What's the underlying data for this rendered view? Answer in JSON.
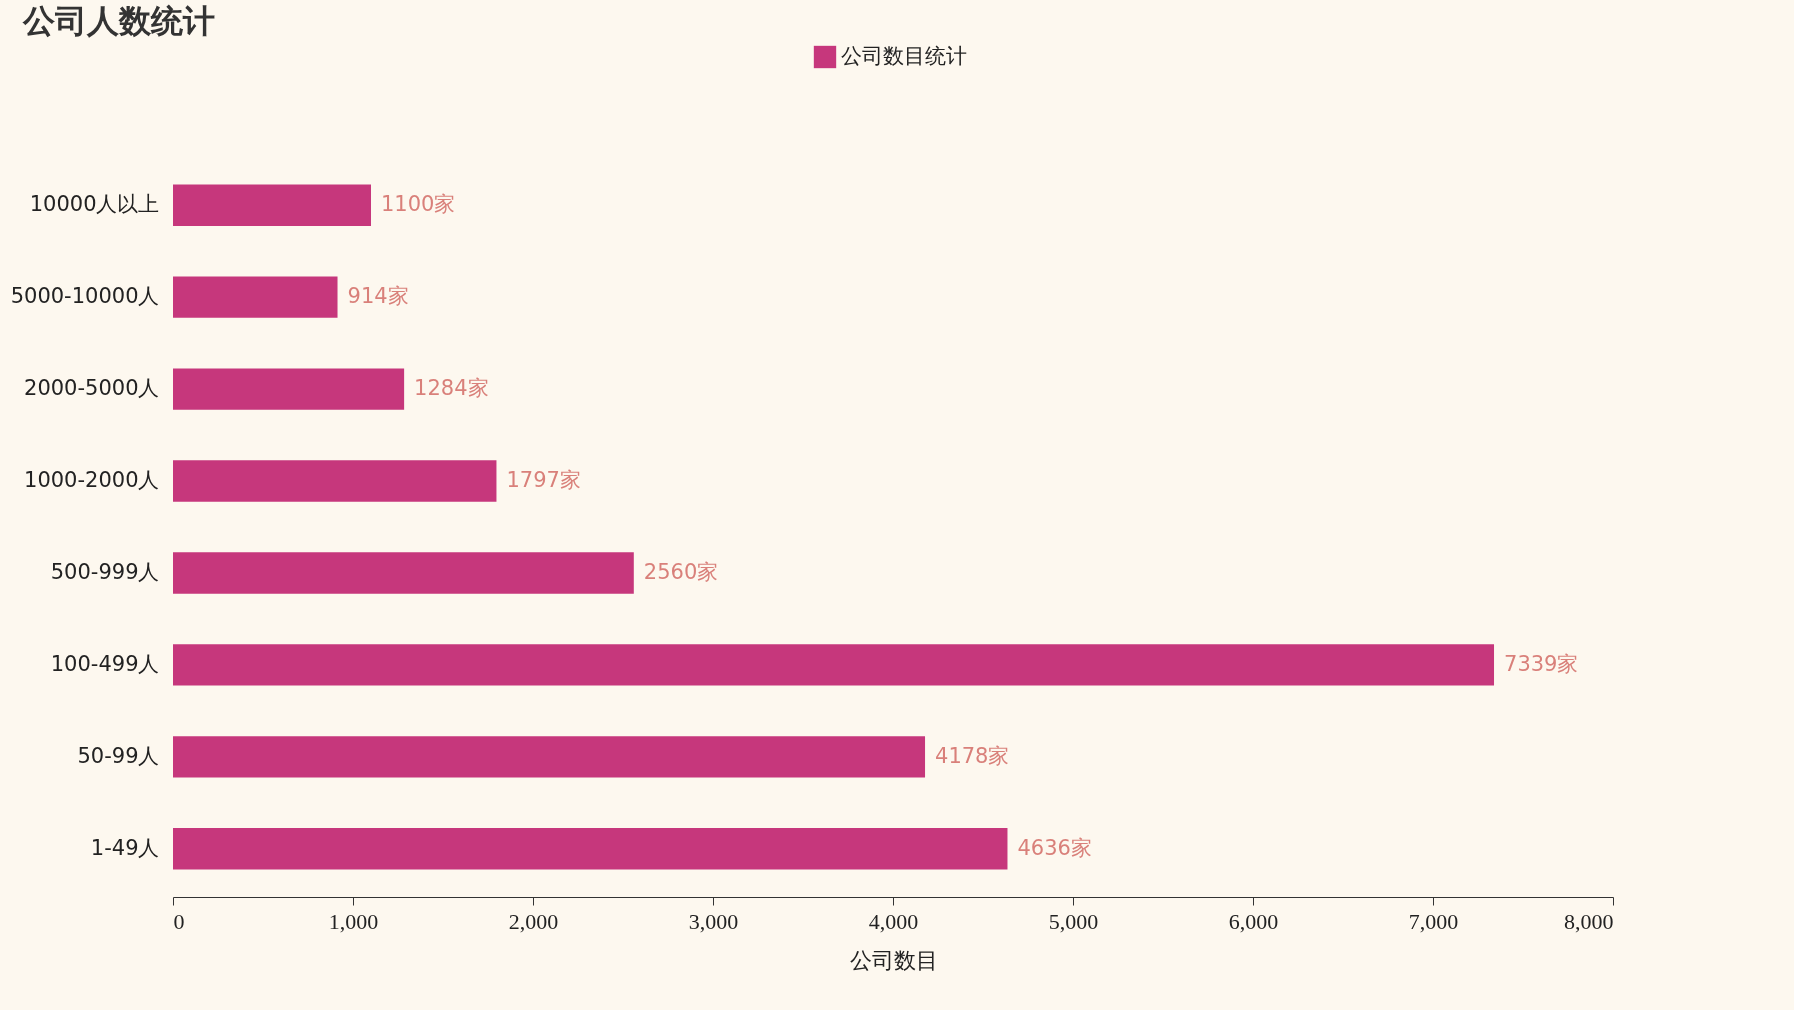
{
  "chart_data": {
    "type": "bar",
    "title": "公司人数统计",
    "xlabel": "公司数目",
    "orientation": "horizontal",
    "categories": [
      "10000人以上",
      "5000-10000人",
      "2000-5000人",
      "1000-2000人",
      "500-999人",
      "100-499人",
      "50-99人",
      "1-49人"
    ],
    "series": [
      {
        "name": "公司数目统计",
        "color": "#c6377c",
        "values": [
          1100,
          914,
          1284,
          1797,
          2560,
          7339,
          4178,
          4636
        ],
        "value_labels": [
          "1100家",
          "914家",
          "1284家",
          "1797家",
          "2560家",
          "7339家",
          "4178家",
          "4636家"
        ]
      }
    ],
    "xlim": [
      0,
      8000
    ],
    "xticks": [
      0,
      {
        "value": 1000,
        "label": "1,000"
      },
      {
        "value": 2000,
        "label": "2,000"
      },
      {
        "value": 3000,
        "label": "3,000"
      },
      {
        "value": 4000,
        "label": "4,000"
      },
      {
        "value": 5000,
        "label": "5,000"
      },
      {
        "value": 6000,
        "label": "6,000"
      },
      {
        "value": 7000,
        "label": "7,000"
      },
      {
        "value": 8000,
        "label": "8,000"
      }
    ],
    "grid": false,
    "legend": "top"
  }
}
